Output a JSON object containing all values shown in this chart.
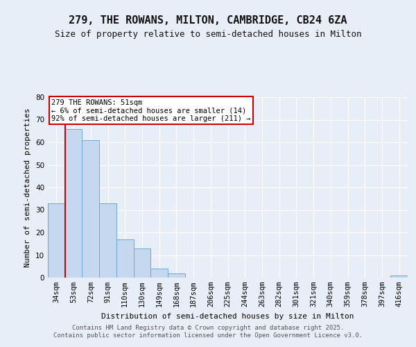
{
  "title": "279, THE ROWANS, MILTON, CAMBRIDGE, CB24 6ZA",
  "subtitle": "Size of property relative to semi-detached houses in Milton",
  "xlabel": "Distribution of semi-detached houses by size in Milton",
  "ylabel": "Number of semi-detached properties",
  "bins": [
    "34sqm",
    "53sqm",
    "72sqm",
    "91sqm",
    "110sqm",
    "130sqm",
    "149sqm",
    "168sqm",
    "187sqm",
    "206sqm",
    "225sqm",
    "244sqm",
    "263sqm",
    "282sqm",
    "301sqm",
    "321sqm",
    "340sqm",
    "359sqm",
    "378sqm",
    "397sqm",
    "416sqm"
  ],
  "values": [
    33,
    66,
    61,
    33,
    17,
    13,
    4,
    2,
    0,
    0,
    0,
    0,
    0,
    0,
    0,
    0,
    0,
    0,
    0,
    0,
    1
  ],
  "bar_color": "#c5d8f0",
  "bar_edge_color": "#6aaad4",
  "property_line_color": "#cc0000",
  "property_line_x": 0.5,
  "annotation_text": "279 THE ROWANS: 51sqm\n← 6% of semi-detached houses are smaller (14)\n92% of semi-detached houses are larger (211) →",
  "annotation_box_edgecolor": "#cc0000",
  "ylim": [
    0,
    80
  ],
  "yticks": [
    0,
    10,
    20,
    30,
    40,
    50,
    60,
    70,
    80
  ],
  "footer_text": "Contains HM Land Registry data © Crown copyright and database right 2025.\nContains public sector information licensed under the Open Government Licence v3.0.",
  "bg_color": "#e8eef8",
  "plot_bg_color": "#e8eef8",
  "grid_color": "#ffffff",
  "title_fontsize": 11,
  "subtitle_fontsize": 9,
  "axis_label_fontsize": 8,
  "tick_fontsize": 7.5,
  "annotation_fontsize": 7.5,
  "footer_fontsize": 6.5
}
